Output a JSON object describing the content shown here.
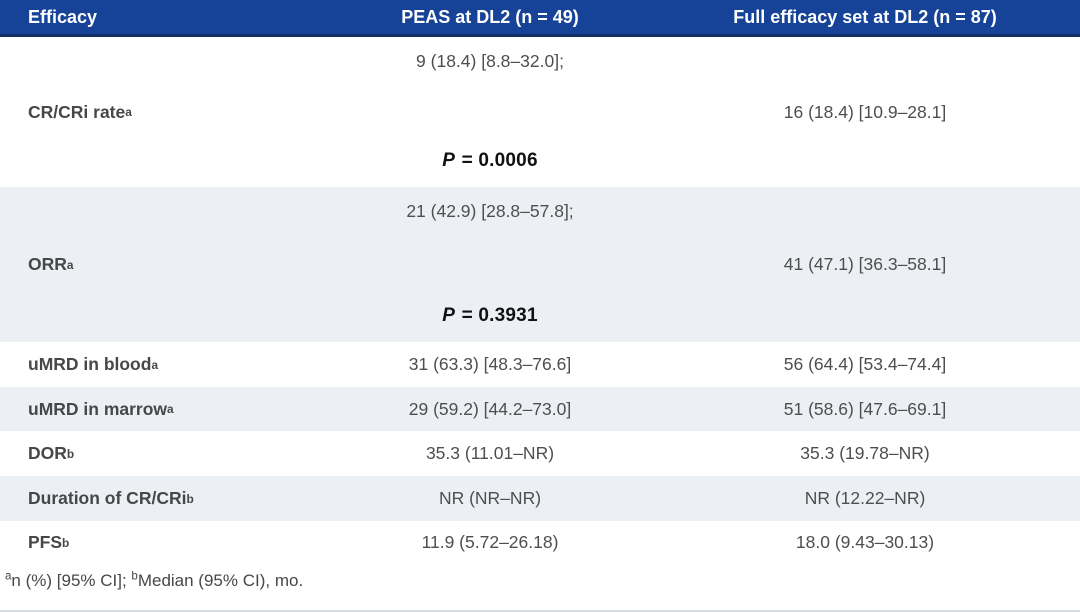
{
  "table": {
    "header": {
      "col1": "Efficacy",
      "col2": "PEAS at DL2 (n = 49)",
      "col3": "Full efficacy set at DL2 (n = 87)"
    },
    "rows": [
      {
        "label": "CR/CRi rate",
        "sup": "a",
        "peas": "9 (18.4) [8.8–32.0];",
        "full": "16 (18.4) [10.9–28.1]",
        "p_sym": "P",
        "p_rest": " = 0.0006",
        "shade": false
      },
      {
        "label": "ORR",
        "sup": "a",
        "peas": "21 (42.9) [28.8–57.8];",
        "full": "41 (47.1) [36.3–58.1]",
        "p_sym": "P",
        "p_rest": " = 0.3931",
        "shade": true
      },
      {
        "label": "uMRD in blood",
        "sup": "a",
        "peas": "31 (63.3) [48.3–76.6]",
        "full": "56 (64.4) [53.4–74.4]",
        "shade": false
      },
      {
        "label": "uMRD in marrow",
        "sup": "a",
        "peas": "29 (59.2) [44.2–73.0]",
        "full": "51 (58.6) [47.6–69.1]",
        "shade": true
      },
      {
        "label": "DOR",
        "sup": "b",
        "peas": "35.3 (11.01–NR)",
        "full": "35.3 (19.78–NR)",
        "shade": false
      },
      {
        "label": "Duration of CR/CRi",
        "sup": "b",
        "peas": "NR (NR–NR)",
        "full": "NR (12.22–NR)",
        "shade": true
      },
      {
        "label": "PFS",
        "sup": "b",
        "peas": "11.9 (5.72–26.18)",
        "full": "18.0 (9.43–30.13)",
        "shade": false
      }
    ],
    "footnote": [
      {
        "sup": "a"
      },
      {
        "text": "n (%) [95% CI]; "
      },
      {
        "sup": "b"
      },
      {
        "text": "Median (95% CI), mo."
      }
    ]
  },
  "colors": {
    "header_bg": "#164398",
    "header_border": "#122e63",
    "shade_bg": "#ecf0f5",
    "text": "#4e4e4e",
    "p_text": "#111111",
    "bottom_rule": "#d9dde3"
  }
}
